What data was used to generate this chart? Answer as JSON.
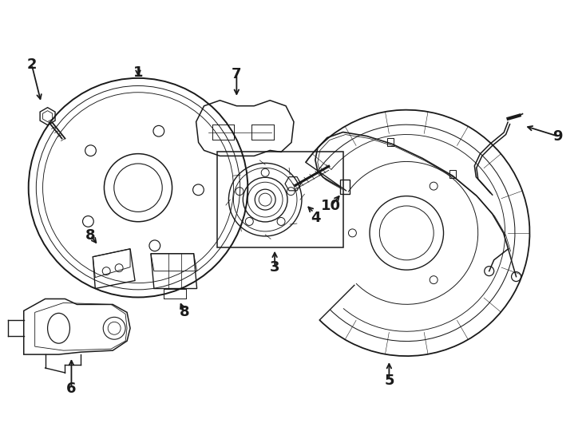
{
  "bg_color": "#ffffff",
  "line_color": "#1a1a1a",
  "lw": 1.0,
  "fig_width": 7.34,
  "fig_height": 5.4,
  "font_size_label": 13,
  "font_weight": "bold",
  "xlim": [
    0,
    734
  ],
  "ylim": [
    0,
    540
  ]
}
